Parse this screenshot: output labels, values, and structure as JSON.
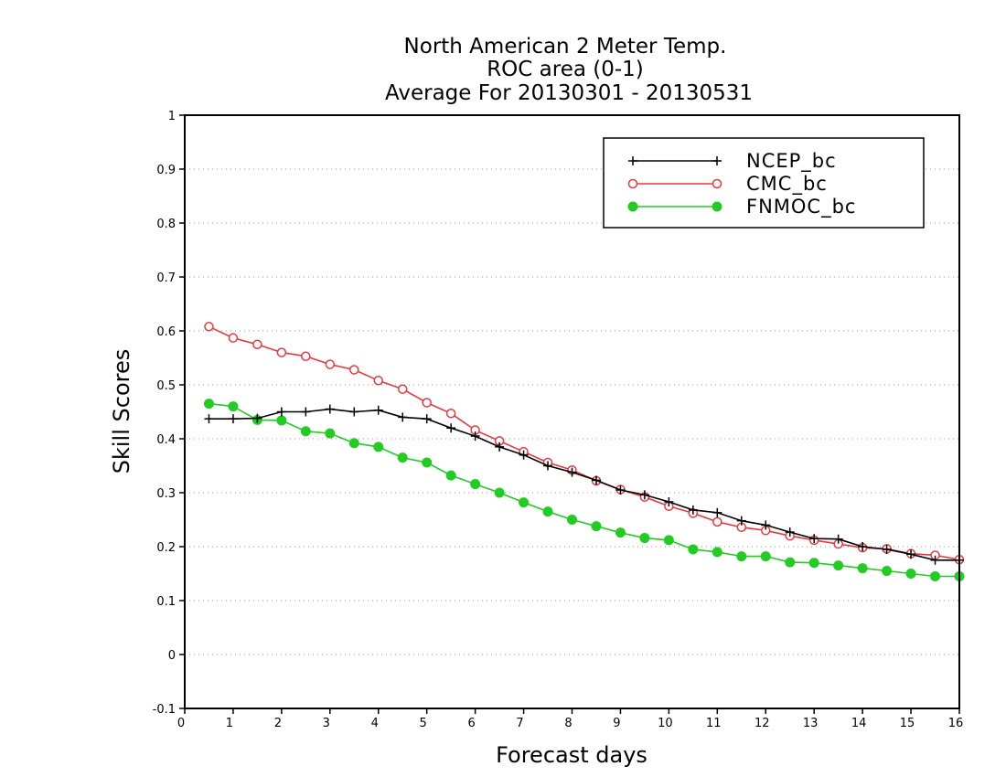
{
  "chart_data": {
    "type": "line",
    "title": [
      "North American 2 Meter Temp.",
      "ROC area (0-1)",
      "Average For 20130301 - 20130531"
    ],
    "xlabel": "Forecast days",
    "ylabel": "Skill Scores",
    "xlim": [
      0,
      16
    ],
    "ylim": [
      -0.1,
      1
    ],
    "xticks": [
      "0",
      "1",
      "2",
      "3",
      "4",
      "5",
      "6",
      "7",
      "8",
      "9",
      "10",
      "11",
      "12",
      "13",
      "14",
      "15",
      "16"
    ],
    "yticks": [
      "-0.1",
      "0",
      "0.1",
      "0.2",
      "0.3",
      "0.4",
      "0.5",
      "0.6",
      "0.7",
      "0.8",
      "0.9",
      "1"
    ],
    "grid": true,
    "legend_position": "top-right",
    "x": [
      0.5,
      1,
      1.5,
      2,
      2.5,
      3,
      3.5,
      4,
      4.5,
      5,
      5.5,
      6,
      6.5,
      7,
      7.5,
      8,
      8.5,
      9,
      9.5,
      10,
      10.5,
      11,
      11.5,
      12,
      12.5,
      13,
      13.5,
      14,
      14.5,
      15,
      15.5,
      16
    ],
    "series": [
      {
        "name": "NCEP_bc",
        "color": "#000000",
        "marker": "plus",
        "values": [
          0.437,
          0.437,
          0.438,
          0.45,
          0.45,
          0.455,
          0.45,
          0.453,
          0.44,
          0.437,
          0.42,
          0.405,
          0.385,
          0.37,
          0.35,
          0.338,
          0.323,
          0.305,
          0.296,
          0.283,
          0.268,
          0.263,
          0.248,
          0.24,
          0.227,
          0.215,
          0.214,
          0.2,
          0.195,
          0.186,
          0.175,
          0.175
        ]
      },
      {
        "name": "CMC_bc",
        "color": "#e8393f",
        "marker": "open-circle",
        "values": [
          0.608,
          0.587,
          0.575,
          0.56,
          0.553,
          0.538,
          0.528,
          0.508,
          0.492,
          0.467,
          0.447,
          0.416,
          0.396,
          0.376,
          0.356,
          0.342,
          0.322,
          0.306,
          0.292,
          0.275,
          0.262,
          0.246,
          0.236,
          0.23,
          0.22,
          0.212,
          0.205,
          0.198,
          0.196,
          0.187,
          0.184,
          0.176
        ]
      },
      {
        "name": "FNMOC_bc",
        "color": "#22cc22",
        "marker": "filled-circle",
        "values": [
          0.465,
          0.46,
          0.435,
          0.434,
          0.414,
          0.41,
          0.392,
          0.385,
          0.365,
          0.356,
          0.332,
          0.316,
          0.3,
          0.282,
          0.265,
          0.25,
          0.238,
          0.226,
          0.216,
          0.212,
          0.195,
          0.19,
          0.182,
          0.182,
          0.171,
          0.17,
          0.165,
          0.16,
          0.155,
          0.15,
          0.145,
          0.145
        ]
      }
    ]
  }
}
